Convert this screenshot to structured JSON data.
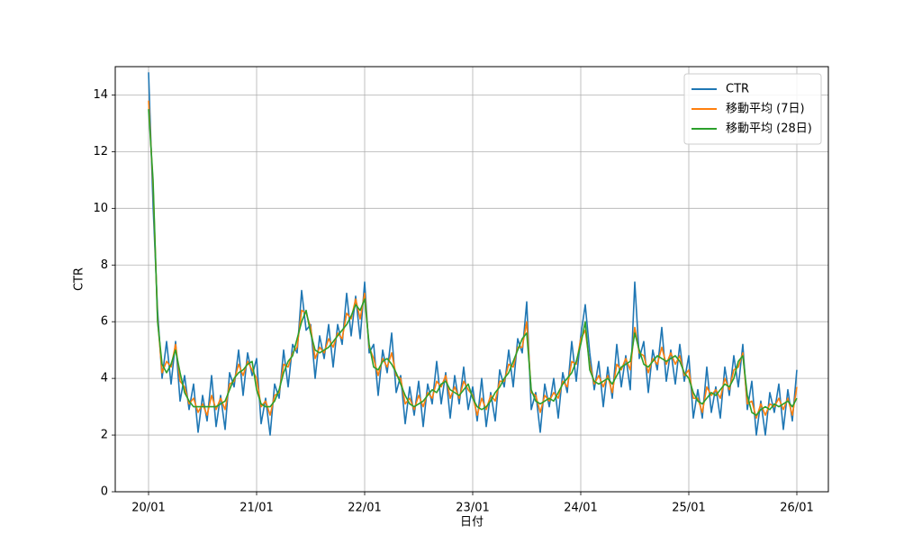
{
  "chart_data": {
    "type": "line",
    "xlabel": "日付",
    "ylabel": "CTR",
    "x": [
      0,
      0.5,
      1,
      1.5,
      2,
      2.5,
      3,
      3.5,
      4,
      4.5,
      5,
      5.5,
      6,
      6.5,
      7,
      7.5,
      8,
      8.5,
      9,
      9.5,
      10,
      10.5,
      11,
      11.5,
      12,
      12.5,
      13,
      13.5,
      14,
      14.5,
      15,
      15.5,
      16,
      16.5,
      17,
      17.5,
      18,
      18.5,
      19,
      19.5,
      20,
      20.5,
      21,
      21.5,
      22,
      22.5,
      23,
      23.5,
      24,
      24.5,
      25,
      25.5,
      26,
      26.5,
      27,
      27.5,
      28,
      28.5,
      29,
      29.5,
      30,
      30.5,
      31,
      31.5,
      32,
      32.5,
      33,
      33.5,
      34,
      34.5,
      35,
      35.5,
      36,
      36.5,
      37,
      37.5,
      38,
      38.5,
      39,
      39.5,
      40,
      40.5,
      41,
      41.5,
      42,
      42.5,
      43,
      43.5,
      44,
      44.5,
      45,
      45.5,
      46,
      46.5,
      47,
      47.5,
      48,
      48.5,
      49,
      49.5,
      50,
      50.5,
      51,
      51.5,
      52,
      52.5,
      53,
      53.5,
      54,
      54.5,
      55,
      55.5,
      56,
      56.5,
      57,
      57.5,
      58,
      58.5,
      59,
      59.5,
      60,
      60.5,
      61,
      61.5,
      62,
      62.5,
      63,
      63.5,
      64,
      64.5,
      65,
      65.5,
      66,
      66.5,
      67,
      67.5,
      68,
      68.5,
      69,
      69.5,
      70,
      70.5,
      71,
      71.5,
      72
    ],
    "series": [
      {
        "name": "CTR",
        "color": "#1f77b4",
        "values": [
          14.8,
          10.1,
          6.4,
          4.0,
          5.3,
          3.8,
          5.3,
          3.2,
          4.1,
          2.9,
          3.8,
          2.1,
          3.4,
          2.5,
          4.1,
          2.3,
          3.4,
          2.2,
          4.2,
          3.7,
          5.0,
          3.4,
          4.9,
          4.1,
          4.7,
          2.4,
          3.3,
          2.0,
          3.8,
          3.3,
          5.0,
          3.7,
          5.2,
          4.9,
          7.1,
          5.7,
          5.9,
          4.0,
          5.5,
          4.7,
          5.9,
          4.4,
          5.9,
          5.2,
          7.0,
          5.5,
          6.9,
          5.4,
          7.4,
          4.9,
          5.2,
          3.4,
          5.0,
          4.2,
          5.6,
          3.5,
          4.1,
          2.4,
          3.7,
          2.7,
          3.9,
          2.3,
          3.8,
          3.1,
          4.6,
          3.1,
          4.2,
          2.6,
          4.1,
          3.1,
          4.4,
          2.9,
          3.7,
          2.5,
          4.0,
          2.3,
          3.5,
          2.5,
          4.3,
          3.7,
          5.0,
          3.7,
          5.4,
          4.9,
          6.7,
          2.9,
          3.5,
          2.1,
          3.8,
          3.0,
          4.0,
          2.6,
          4.2,
          3.5,
          5.3,
          3.9,
          5.5,
          6.6,
          4.9,
          3.6,
          4.6,
          3.0,
          4.4,
          3.3,
          5.2,
          3.7,
          4.8,
          3.6,
          7.4,
          4.7,
          5.3,
          3.5,
          5.0,
          4.3,
          5.8,
          3.9,
          5.0,
          3.8,
          5.2,
          3.9,
          4.8,
          2.6,
          3.6,
          2.6,
          4.4,
          2.8,
          3.7,
          2.6,
          4.4,
          3.4,
          4.8,
          3.7,
          5.2,
          2.9,
          3.9,
          2.0,
          3.2,
          2.0,
          3.5,
          2.8,
          3.8,
          2.2,
          3.6,
          2.5,
          4.3
        ]
      },
      {
        "name": "移動平均 (7日)",
        "color": "#ff7f0e",
        "values": [
          13.8,
          10.8,
          6.1,
          4.2,
          4.6,
          4.4,
          5.2,
          3.9,
          3.7,
          3.1,
          3.3,
          2.8,
          3.1,
          2.7,
          3.4,
          2.9,
          3.3,
          2.9,
          3.8,
          3.9,
          4.5,
          4.1,
          4.6,
          4.3,
          4.0,
          3.0,
          3.2,
          2.7,
          3.4,
          3.5,
          4.5,
          4.4,
          4.9,
          5.1,
          6.4,
          6.3,
          5.8,
          4.7,
          5.1,
          4.9,
          5.4,
          5.1,
          5.6,
          5.4,
          6.3,
          6.1,
          6.8,
          6.1,
          7.0,
          5.1,
          4.7,
          4.1,
          4.7,
          4.4,
          4.9,
          4.1,
          4.0,
          3.1,
          3.3,
          2.9,
          3.4,
          3.0,
          3.5,
          3.3,
          3.9,
          3.7,
          4.1,
          3.3,
          3.7,
          3.3,
          3.9,
          3.6,
          3.4,
          2.7,
          3.3,
          2.9,
          3.4,
          3.2,
          3.9,
          3.9,
          4.5,
          4.4,
          5.1,
          5.1,
          6.0,
          3.5,
          3.4,
          2.8,
          3.4,
          3.2,
          3.5,
          3.3,
          3.9,
          3.7,
          4.6,
          4.5,
          5.4,
          5.7,
          4.5,
          3.8,
          4.1,
          3.7,
          4.1,
          3.5,
          4.5,
          4.3,
          4.7,
          4.3,
          5.8,
          4.9,
          4.8,
          4.2,
          4.7,
          4.5,
          5.1,
          4.5,
          4.9,
          4.5,
          4.8,
          4.1,
          4.3,
          3.3,
          3.3,
          2.8,
          3.7,
          3.4,
          3.6,
          3.3,
          4.0,
          3.6,
          4.3,
          4.4,
          4.9,
          3.1,
          3.2,
          2.6,
          3.1,
          2.7,
          3.1,
          3.0,
          3.3,
          2.9,
          3.3,
          2.7,
          3.7
        ]
      },
      {
        "name": "移動平均 (28日)",
        "color": "#2ca02c",
        "values": [
          13.5,
          11,
          6,
          4.5,
          4.2,
          4.5,
          5,
          4.2,
          3.5,
          3.2,
          3.0,
          3.0,
          3.0,
          3.0,
          3.0,
          3.0,
          3.1,
          3.2,
          3.6,
          4.0,
          4.2,
          4.3,
          4.5,
          4.6,
          3.6,
          3.1,
          3.0,
          3.0,
          3.2,
          3.6,
          4.2,
          4.6,
          4.8,
          5.4,
          6.0,
          6.4,
          5.6,
          5.0,
          4.9,
          5.0,
          5.1,
          5.3,
          5.5,
          5.7,
          5.9,
          6.2,
          6.6,
          6.4,
          6.8,
          5.2,
          4.4,
          4.3,
          4.6,
          4.7,
          4.5,
          4.2,
          3.8,
          3.4,
          3.1,
          3.0,
          3.1,
          3.2,
          3.4,
          3.6,
          3.5,
          3.8,
          3.9,
          3.6,
          3.5,
          3.4,
          3.6,
          3.8,
          3.3,
          3.0,
          2.9,
          3.0,
          3.2,
          3.5,
          3.7,
          4.0,
          4.2,
          4.6,
          5.0,
          5.4,
          5.6,
          3.6,
          3.2,
          3.1,
          3.2,
          3.3,
          3.2,
          3.5,
          3.8,
          4.0,
          4.2,
          4.6,
          5.2,
          6.0,
          4.3,
          3.9,
          3.8,
          3.9,
          4.0,
          3.8,
          4.1,
          4.4,
          4.5,
          4.6,
          5.6,
          5.0,
          4.5,
          4.4,
          4.6,
          4.8,
          4.7,
          4.6,
          4.7,
          4.8,
          4.6,
          4.2,
          4.0,
          3.5,
          3.2,
          3.1,
          3.3,
          3.5,
          3.4,
          3.6,
          3.8,
          3.7,
          4.0,
          4.6,
          4.8,
          3.4,
          2.8,
          2.7,
          2.9,
          3.0,
          2.9,
          3.1,
          3.0,
          3.1,
          3.2,
          3.0,
          3.3
        ]
      }
    ],
    "xlim": [
      -3.7,
      75.5
    ],
    "xticks": [
      {
        "value": 0,
        "label": "20/01"
      },
      {
        "value": 12,
        "label": "21/01"
      },
      {
        "value": 24,
        "label": "22/01"
      },
      {
        "value": 36,
        "label": "23/01"
      },
      {
        "value": 48,
        "label": "24/01"
      },
      {
        "value": 60,
        "label": "25/01"
      },
      {
        "value": 72,
        "label": "26/01"
      }
    ],
    "ylim": [
      0,
      15
    ],
    "yticks": [
      0,
      2,
      4,
      6,
      8,
      10,
      12,
      14
    ],
    "grid": true,
    "legend": "upper right"
  }
}
